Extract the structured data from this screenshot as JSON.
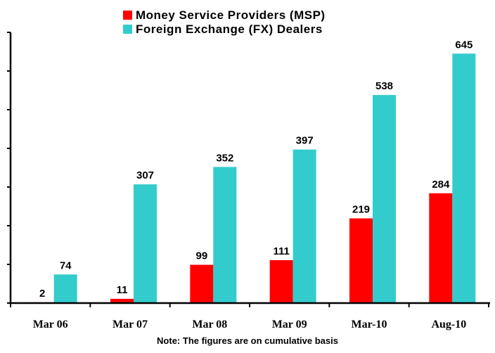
{
  "chart_data": {
    "type": "bar",
    "categories": [
      "Mar 06",
      "Mar 07",
      "Mar 08",
      "Mar 09",
      "Mar-10",
      "Aug-10"
    ],
    "series": [
      {
        "name": "Money Service Providers (MSP)",
        "values": [
          2,
          11,
          99,
          111,
          219,
          284
        ],
        "color": "#ff0000"
      },
      {
        "name": "Foreign Exchange (FX) Dealers",
        "values": [
          74,
          307,
          352,
          397,
          538,
          645
        ],
        "color": "#33cccc"
      }
    ],
    "ylim": [
      0,
      700
    ],
    "ytick_step": 100,
    "ytick_labels_shown": false,
    "grid": false,
    "legend": "top-center",
    "data_labels": true,
    "note": "Note: The figures are on cumulative basis"
  }
}
